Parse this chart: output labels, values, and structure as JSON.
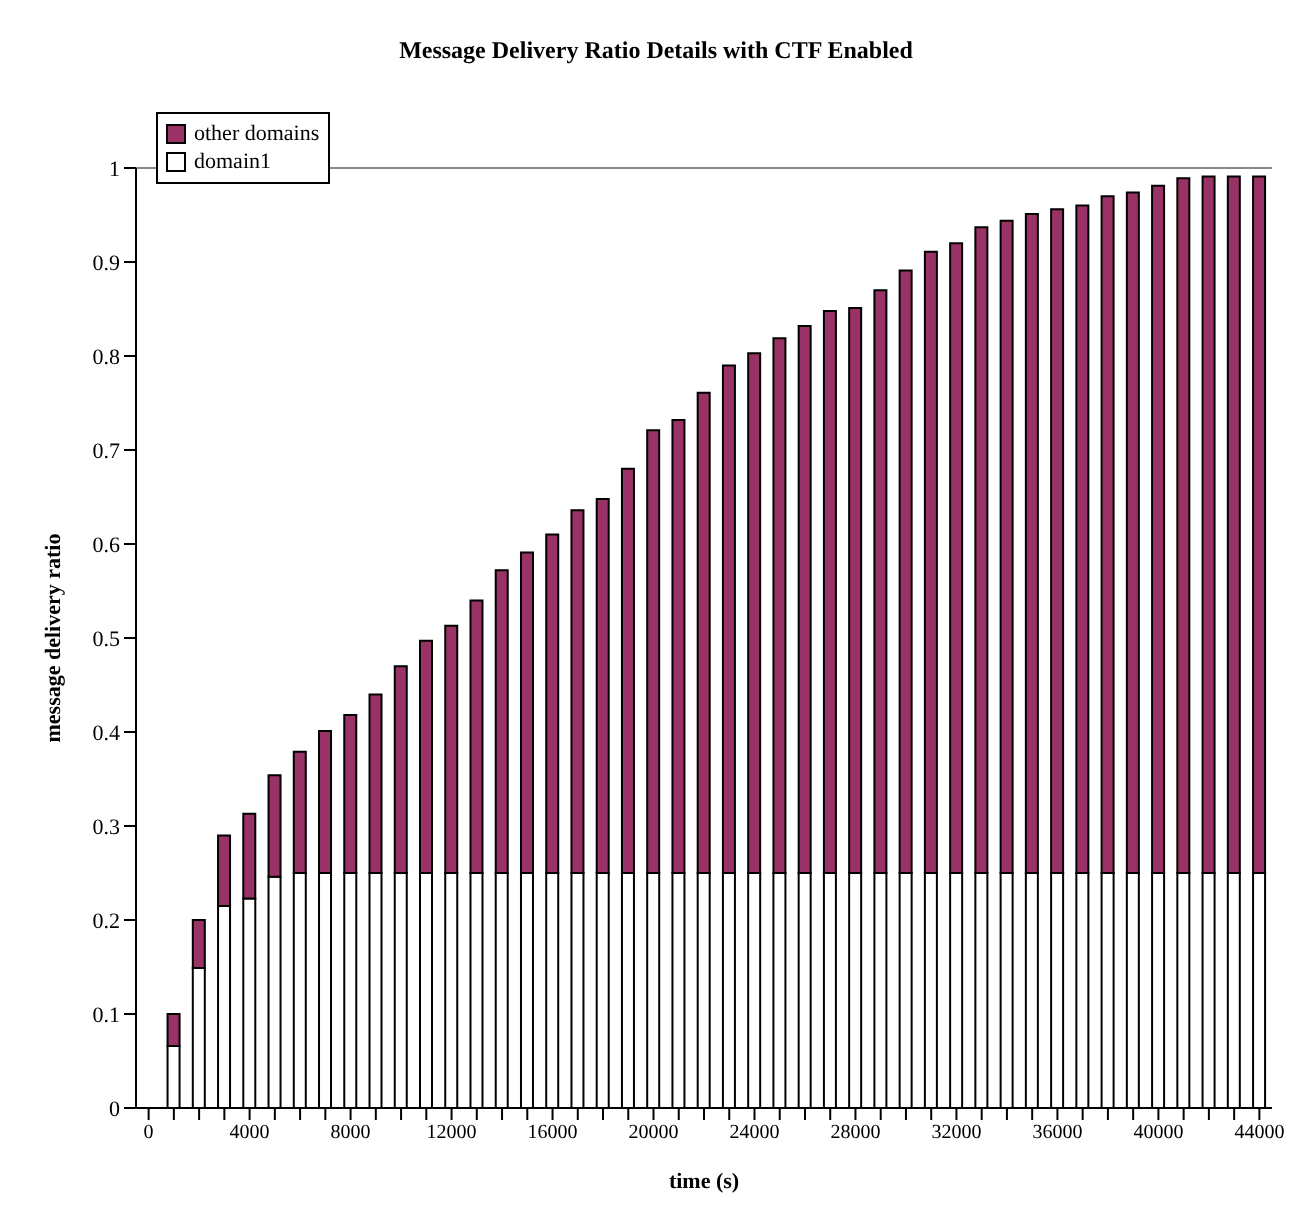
{
  "chart_data": {
    "type": "bar",
    "title": "Message Delivery Ratio Details with CTF Enabled",
    "xlabel": "time (s)",
    "ylabel": "message delivery ratio",
    "categories": [
      "0",
      null,
      null,
      null,
      "4000",
      null,
      null,
      null,
      "8000",
      null,
      null,
      null,
      "12000",
      null,
      null,
      null,
      "16000",
      null,
      null,
      null,
      "20000",
      null,
      null,
      null,
      "24000",
      null,
      null,
      null,
      "28000",
      null,
      null,
      null,
      "32000",
      null,
      null,
      null,
      "36000",
      null,
      null,
      null,
      "40000",
      null,
      null,
      null,
      "44000"
    ],
    "stacked": true,
    "series": [
      {
        "name": "domain1",
        "color": "#ffffff",
        "values": [
          null,
          0.066,
          0.149,
          0.215,
          0.223,
          0.246,
          0.25,
          0.25,
          0.25,
          0.25,
          0.25,
          0.25,
          0.25,
          0.25,
          0.25,
          0.25,
          0.25,
          0.25,
          0.25,
          0.25,
          0.25,
          0.25,
          0.25,
          0.25,
          0.25,
          0.25,
          0.25,
          0.25,
          0.25,
          0.25,
          0.25,
          0.25,
          0.25,
          0.25,
          0.25,
          0.25,
          0.25,
          0.25,
          0.25,
          0.25,
          0.25,
          0.25,
          0.25,
          0.25,
          0.25
        ]
      },
      {
        "name": "other domains",
        "color": "#993366",
        "values": [
          null,
          0.034,
          0.051,
          0.075,
          0.09,
          0.108,
          0.129,
          0.151,
          0.168,
          0.19,
          0.22,
          0.247,
          0.263,
          0.29,
          0.322,
          0.341,
          0.36,
          0.386,
          0.398,
          0.43,
          0.471,
          0.482,
          0.511,
          0.54,
          0.553,
          0.569,
          0.582,
          0.598,
          0.601,
          0.62,
          0.641,
          0.661,
          0.67,
          0.687,
          0.694,
          0.701,
          0.706,
          0.71,
          0.72,
          0.724,
          0.731,
          0.739,
          0.741,
          0.741,
          0.741
        ]
      }
    ],
    "ylim": [
      0,
      1
    ],
    "yticks": [
      0,
      0.1,
      0.2,
      0.3,
      0.4,
      0.5,
      0.6,
      0.7,
      0.8,
      0.9,
      1
    ],
    "grid": false,
    "legend": "top left"
  }
}
